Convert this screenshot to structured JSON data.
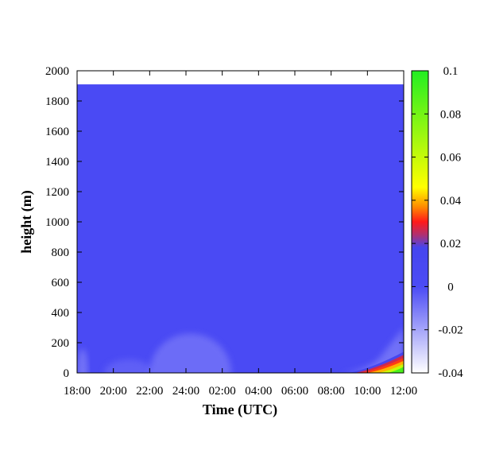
{
  "chart_data": {
    "type": "heatmap",
    "title": "",
    "xlabel": "Time (UTC)",
    "ylabel": "height (m)",
    "x_tick_labels": [
      "18:00",
      "20:00",
      "22:00",
      "24:00",
      "02:00",
      "04:00",
      "06:00",
      "08:00",
      "10:00",
      "12:00"
    ],
    "x_range_hours": [
      0,
      18
    ],
    "y_ticks": [
      0,
      200,
      400,
      600,
      800,
      1000,
      1200,
      1400,
      1600,
      1800,
      2000
    ],
    "ylim": [
      0,
      2000
    ],
    "data_top_height": 1910,
    "colorbar": {
      "ticks": [
        0.1,
        0.08,
        0.06,
        0.04,
        0.02,
        0,
        -0.02,
        -0.04
      ],
      "tick_labels": [
        "0.1",
        "0.08",
        "0.06",
        "0.04",
        "0.02",
        "0",
        "-0.02",
        "-0.04"
      ],
      "range": [
        -0.04,
        0.1
      ],
      "palette": [
        {
          "value": -0.04,
          "color": "#ffffff"
        },
        {
          "value": 0.0,
          "color": "#4b4bf5"
        },
        {
          "value": 0.018,
          "color": "#4545ee"
        },
        {
          "value": 0.024,
          "color": "#b03070"
        },
        {
          "value": 0.03,
          "color": "#ff1a1a"
        },
        {
          "value": 0.037,
          "color": "#ff8c00"
        },
        {
          "value": 0.046,
          "color": "#ffff00"
        },
        {
          "value": 0.1,
          "color": "#22ee22"
        }
      ]
    },
    "background_value": 0.002,
    "features": [
      {
        "name": "weak negative patch near surface at start",
        "x_hours": [
          0.0,
          0.6
        ],
        "y_m": [
          0,
          160
        ],
        "value": -0.012
      },
      {
        "name": "weak negative evening layer",
        "x_hours": [
          1.5,
          4.2
        ],
        "y_m": [
          0,
          90
        ],
        "value": -0.006
      },
      {
        "name": "nocturnal residual layer",
        "x_hours": [
          4.0,
          8.5
        ],
        "y_m": [
          0,
          260
        ],
        "value": -0.01
      },
      {
        "name": "morning boundary layer growth",
        "x_hours": [
          14.5,
          18.0
        ],
        "y_m": [
          0,
          300
        ],
        "value": -0.01
      },
      {
        "name": "daytime convective flux",
        "x_hours": [
          15.0,
          18.0
        ],
        "y_m": [
          0,
          140
        ],
        "value": 0.09
      }
    ]
  }
}
